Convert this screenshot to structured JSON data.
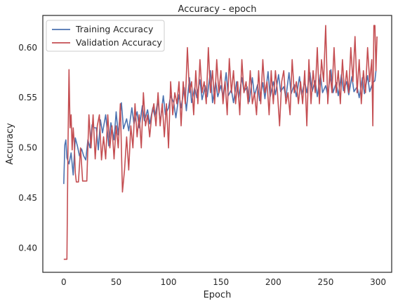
{
  "chart_data": {
    "type": "line",
    "title": "Accuracy - epoch",
    "xlabel": "Epoch",
    "ylabel": "Accuracy",
    "xlim": [
      -20,
      313
    ],
    "ylim": [
      0.376,
      0.632
    ],
    "xticks": [
      0,
      50,
      100,
      150,
      200,
      250,
      300
    ],
    "yticks": [
      0.4,
      0.45,
      0.5,
      0.55,
      0.6
    ],
    "grid": false,
    "legend_position": "top-left",
    "series": [
      {
        "name": "Training Accuracy",
        "color": "#4c72b0",
        "x": [
          0,
          1,
          2,
          3,
          5,
          7,
          9,
          11,
          13,
          15,
          17,
          19,
          21,
          23,
          25,
          27,
          29,
          31,
          33,
          35,
          37,
          40,
          43,
          45,
          48,
          50,
          52,
          55,
          57,
          60,
          62,
          65,
          67,
          70,
          72,
          75,
          77,
          80,
          82,
          85,
          87,
          90,
          92,
          95,
          97,
          100,
          102,
          105,
          107,
          110,
          112,
          115,
          117,
          120,
          122,
          125,
          127,
          130,
          132,
          135,
          137,
          140,
          142,
          145,
          147,
          150,
          152,
          155,
          157,
          160,
          162,
          165,
          167,
          170,
          172,
          175,
          177,
          180,
          182,
          185,
          187,
          190,
          192,
          195,
          197,
          200,
          202,
          205,
          207,
          210,
          212,
          215,
          217,
          220,
          222,
          225,
          227,
          230,
          232,
          235,
          237,
          240,
          242,
          245,
          247,
          250,
          252,
          255,
          257,
          260,
          262,
          265,
          267,
          270,
          272,
          275,
          277,
          280,
          282,
          285,
          287,
          290,
          292,
          295,
          297,
          298
        ],
        "y": [
          0.464,
          0.503,
          0.508,
          0.49,
          0.484,
          0.495,
          0.473,
          0.51,
          0.502,
          0.492,
          0.499,
          0.492,
          0.488,
          0.508,
          0.5,
          0.523,
          0.52,
          0.52,
          0.498,
          0.528,
          0.515,
          0.533,
          0.502,
          0.525,
          0.508,
          0.536,
          0.513,
          0.545,
          0.519,
          0.529,
          0.517,
          0.54,
          0.524,
          0.536,
          0.52,
          0.542,
          0.527,
          0.538,
          0.524,
          0.54,
          0.531,
          0.548,
          0.525,
          0.552,
          0.533,
          0.54,
          0.552,
          0.545,
          0.53,
          0.553,
          0.54,
          0.56,
          0.537,
          0.57,
          0.545,
          0.56,
          0.55,
          0.568,
          0.548,
          0.562,
          0.551,
          0.577,
          0.545,
          0.566,
          0.551,
          0.562,
          0.551,
          0.575,
          0.552,
          0.558,
          0.545,
          0.566,
          0.55,
          0.57,
          0.556,
          0.561,
          0.546,
          0.57,
          0.552,
          0.563,
          0.547,
          0.565,
          0.549,
          0.576,
          0.551,
          0.566,
          0.553,
          0.573,
          0.556,
          0.561,
          0.55,
          0.575,
          0.554,
          0.563,
          0.551,
          0.571,
          0.553,
          0.566,
          0.555,
          0.575,
          0.556,
          0.567,
          0.551,
          0.573,
          0.555,
          0.562,
          0.552,
          0.578,
          0.555,
          0.565,
          0.552,
          0.573,
          0.557,
          0.566,
          0.553,
          0.571,
          0.556,
          0.561,
          0.55,
          0.57,
          0.554,
          0.572,
          0.556,
          0.565,
          0.567,
          0.577
        ]
      },
      {
        "name": "Validation Accuracy",
        "color": "#c44e52",
        "x": [
          0,
          1,
          2,
          3,
          4,
          5,
          6,
          7,
          8,
          9,
          10,
          11,
          12,
          14,
          16,
          18,
          20,
          22,
          24,
          26,
          28,
          30,
          32,
          34,
          36,
          38,
          40,
          42,
          44,
          46,
          48,
          50,
          52,
          54,
          56,
          58,
          60,
          62,
          64,
          66,
          68,
          70,
          72,
          74,
          76,
          78,
          80,
          82,
          84,
          86,
          88,
          90,
          92,
          94,
          96,
          98,
          100,
          102,
          104,
          106,
          108,
          110,
          112,
          114,
          116,
          118,
          120,
          122,
          124,
          126,
          128,
          130,
          132,
          134,
          136,
          138,
          140,
          142,
          144,
          146,
          148,
          150,
          152,
          154,
          156,
          158,
          160,
          162,
          164,
          166,
          168,
          170,
          172,
          174,
          176,
          178,
          180,
          182,
          184,
          186,
          188,
          190,
          192,
          194,
          196,
          198,
          200,
          202,
          204,
          206,
          208,
          210,
          212,
          214,
          216,
          218,
          220,
          222,
          224,
          226,
          228,
          230,
          232,
          234,
          236,
          238,
          240,
          242,
          244,
          246,
          248,
          250,
          252,
          254,
          256,
          258,
          260,
          262,
          264,
          266,
          268,
          270,
          272,
          274,
          276,
          278,
          280,
          282,
          284,
          286,
          288,
          290,
          292,
          294,
          295,
          296,
          297,
          298,
          299
        ],
        "y": [
          0.389,
          0.389,
          0.389,
          0.389,
          0.5,
          0.578,
          0.52,
          0.533,
          0.498,
          0.52,
          0.505,
          0.475,
          0.466,
          0.466,
          0.5,
          0.467,
          0.467,
          0.467,
          0.533,
          0.5,
          0.533,
          0.489,
          0.522,
          0.533,
          0.488,
          0.511,
          0.489,
          0.533,
          0.5,
          0.522,
          0.489,
          0.522,
          0.5,
          0.544,
          0.456,
          0.478,
          0.511,
          0.478,
          0.522,
          0.5,
          0.544,
          0.511,
          0.533,
          0.5,
          0.555,
          0.522,
          0.533,
          0.511,
          0.533,
          0.544,
          0.522,
          0.555,
          0.522,
          0.544,
          0.511,
          0.544,
          0.5,
          0.566,
          0.533,
          0.555,
          0.544,
          0.566,
          0.522,
          0.566,
          0.544,
          0.6,
          0.555,
          0.566,
          0.533,
          0.577,
          0.544,
          0.588,
          0.555,
          0.566,
          0.544,
          0.6,
          0.555,
          0.577,
          0.544,
          0.588,
          0.555,
          0.577,
          0.544,
          0.566,
          0.533,
          0.589,
          0.555,
          0.577,
          0.544,
          0.566,
          0.533,
          0.588,
          0.555,
          0.566,
          0.544,
          0.577,
          0.544,
          0.555,
          0.533,
          0.577,
          0.544,
          0.588,
          0.555,
          0.566,
          0.533,
          0.577,
          0.544,
          0.577,
          0.555,
          0.522,
          0.566,
          0.577,
          0.544,
          0.555,
          0.533,
          0.588,
          0.555,
          0.566,
          0.544,
          0.566,
          0.544,
          0.577,
          0.522,
          0.588,
          0.544,
          0.577,
          0.555,
          0.6,
          0.544,
          0.588,
          0.566,
          0.622,
          0.544,
          0.577,
          0.555,
          0.6,
          0.555,
          0.577,
          0.544,
          0.588,
          0.555,
          0.577,
          0.555,
          0.6,
          0.566,
          0.611,
          0.555,
          0.588,
          0.544,
          0.577,
          0.555,
          0.6,
          0.566,
          0.588,
          0.522,
          0.622,
          0.622,
          0.577,
          0.611
        ]
      }
    ]
  }
}
